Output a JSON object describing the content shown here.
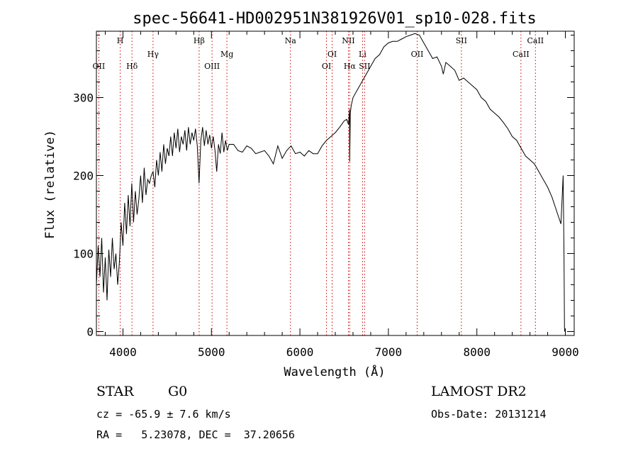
{
  "chart_data": {
    "type": "line",
    "title": "spec-56641-HD002951N381926V01_sp10-028.fits",
    "xlabel": "Wavelength (Å)",
    "ylabel": "Flux (relative)",
    "xlim": [
      3700,
      9100
    ],
    "ylim": [
      -5,
      385
    ],
    "xticks": [
      4000,
      5000,
      6000,
      7000,
      8000,
      9000
    ],
    "yticks": [
      0,
      100,
      200,
      300
    ],
    "grid": false,
    "series": [
      {
        "x": [
          3700,
          3720,
          3740,
          3760,
          3780,
          3800,
          3820,
          3840,
          3860,
          3880,
          3900,
          3920,
          3940,
          3960,
          3980,
          4000,
          4020,
          4040,
          4060,
          4080,
          4100,
          4120,
          4140,
          4160,
          4180,
          4200,
          4220,
          4240,
          4260,
          4280,
          4300,
          4320,
          4340,
          4360,
          4380,
          4400,
          4420,
          4440,
          4460,
          4480,
          4500,
          4520,
          4540,
          4560,
          4580,
          4600,
          4620,
          4640,
          4660,
          4680,
          4700,
          4720,
          4740,
          4760,
          4780,
          4800,
          4820,
          4840,
          4860,
          4880,
          4900,
          4920,
          4940,
          4960,
          4980,
          5000,
          5020,
          5040,
          5060,
          5080,
          5100,
          5120,
          5140,
          5160,
          5180,
          5200,
          5250,
          5300,
          5350,
          5400,
          5450,
          5500,
          5550,
          5600,
          5650,
          5700,
          5750,
          5800,
          5850,
          5900,
          5950,
          6000,
          6050,
          6100,
          6150,
          6200,
          6250,
          6300,
          6350,
          6400,
          6450,
          6500,
          6530,
          6550,
          6560,
          6563,
          6570,
          6580,
          6600,
          6650,
          6700,
          6750,
          6800,
          6850,
          6900,
          6950,
          7000,
          7050,
          7100,
          7150,
          7200,
          7250,
          7300,
          7350,
          7400,
          7450,
          7500,
          7550,
          7600,
          7620,
          7650,
          7700,
          7750,
          7800,
          7850,
          7900,
          7950,
          8000,
          8050,
          8100,
          8150,
          8200,
          8250,
          8300,
          8350,
          8400,
          8450,
          8500,
          8550,
          8600,
          8650,
          8700,
          8750,
          8800,
          8850,
          8900,
          8950,
          8975,
          8985,
          8990,
          8992
        ],
        "y": [
          60,
          110,
          70,
          120,
          50,
          95,
          40,
          105,
          70,
          120,
          80,
          100,
          60,
          90,
          140,
          110,
          165,
          125,
          175,
          135,
          190,
          140,
          180,
          150,
          170,
          200,
          165,
          210,
          175,
          195,
          190,
          200,
          205,
          185,
          220,
          200,
          230,
          205,
          240,
          215,
          235,
          225,
          250,
          225,
          255,
          235,
          260,
          230,
          250,
          240,
          258,
          232,
          262,
          240,
          255,
          245,
          260,
          238,
          190,
          245,
          262,
          238,
          258,
          240,
          252,
          235,
          250,
          232,
          205,
          240,
          228,
          255,
          230,
          245,
          232,
          240,
          240,
          232,
          230,
          238,
          235,
          228,
          230,
          232,
          225,
          215,
          238,
          222,
          232,
          238,
          228,
          230,
          225,
          232,
          228,
          228,
          238,
          245,
          250,
          255,
          262,
          270,
          272,
          265,
          285,
          218,
          280,
          290,
          300,
          310,
          320,
          330,
          340,
          350,
          355,
          365,
          370,
          372,
          372,
          375,
          378,
          380,
          382,
          380,
          370,
          360,
          350,
          352,
          340,
          330,
          345,
          340,
          335,
          322,
          325,
          320,
          315,
          310,
          300,
          295,
          285,
          280,
          275,
          268,
          260,
          250,
          245,
          235,
          225,
          220,
          215,
          205,
          195,
          185,
          172,
          155,
          138,
          200,
          100,
          5,
          0
        ]
      }
    ],
    "lines": [
      {
        "label": "OII",
        "wavelength": 3727,
        "row": "low"
      },
      {
        "label": "H",
        "wavelength": 3969,
        "row": "top"
      },
      {
        "label": "Hδ",
        "wavelength": 4102,
        "row": "low"
      },
      {
        "label": "Hγ",
        "wavelength": 4340,
        "row": "mid"
      },
      {
        "label": "Hβ",
        "wavelength": 4861,
        "row": "top"
      },
      {
        "label": "OIII",
        "wavelength": 5007,
        "row": "low"
      },
      {
        "label": "Mg",
        "wavelength": 5175,
        "row": "mid"
      },
      {
        "label": "Na",
        "wavelength": 5893,
        "row": "top"
      },
      {
        "label": "OI",
        "wavelength": 6300,
        "row": "low"
      },
      {
        "label": "OI",
        "wavelength": 6364,
        "row": "mid"
      },
      {
        "label": "NII",
        "wavelength": 6548,
        "row": "top"
      },
      {
        "label": "Hα",
        "wavelength": 6563,
        "row": "low"
      },
      {
        "label": "Li",
        "wavelength": 6708,
        "row": "mid"
      },
      {
        "label": "SII",
        "wavelength": 6731,
        "row": "low"
      },
      {
        "label": "OII",
        "wavelength": 7325,
        "row": "mid"
      },
      {
        "label": "SII",
        "wavelength": 7825,
        "row": "top"
      },
      {
        "label": "CaII",
        "wavelength": 8498,
        "row": "mid"
      },
      {
        "label": "CaII",
        "wavelength": 8662,
        "row": "top"
      }
    ],
    "colors": {
      "line": "#000000",
      "marker": "#cc0000"
    }
  },
  "footer": {
    "object_type": "STAR",
    "subclass": "G0",
    "cz": "cz = -65.9 ± 7.6 km/s",
    "coords": "RA =   5.23078, DEC =  37.20656",
    "survey": "LAMOST DR2",
    "obs_date": "Obs-Date: 20131214"
  }
}
